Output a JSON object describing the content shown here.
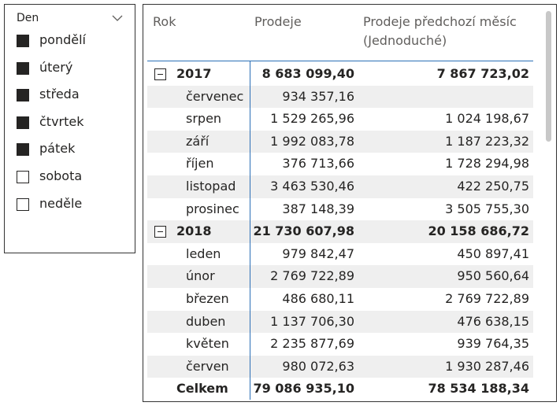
{
  "slicer": {
    "title": "Den",
    "items": [
      {
        "label": "pondělí",
        "checked": true
      },
      {
        "label": "úterý",
        "checked": true
      },
      {
        "label": "středa",
        "checked": true
      },
      {
        "label": "čtvrtek",
        "checked": true
      },
      {
        "label": "pátek",
        "checked": true
      },
      {
        "label": "sobota",
        "checked": false
      },
      {
        "label": "neděle",
        "checked": false
      }
    ]
  },
  "matrix": {
    "headers": {
      "rok": "Rok",
      "prodeje": "Prodeje",
      "predchozi_line1": "Prodeje předchozí měsíc",
      "predchozi_line2": "(Jednoduché)"
    },
    "rows": [
      {
        "label": "2017",
        "prodeje": "8 683 099,40",
        "predchozi": "7 867 723,02",
        "type": "year"
      },
      {
        "label": "červenec",
        "prodeje": "934 357,16",
        "predchozi": "",
        "type": "month"
      },
      {
        "label": "srpen",
        "prodeje": "1 529 265,96",
        "predchozi": "1 024 198,67",
        "type": "month"
      },
      {
        "label": "září",
        "prodeje": "1 992 083,78",
        "predchozi": "1 187 223,32",
        "type": "month"
      },
      {
        "label": "říjen",
        "prodeje": "376 713,66",
        "predchozi": "1 728 294,98",
        "type": "month"
      },
      {
        "label": "listopad",
        "prodeje": "3 463 530,46",
        "predchozi": "422 250,75",
        "type": "month"
      },
      {
        "label": "prosinec",
        "prodeje": "387 148,39",
        "predchozi": "3 505 755,30",
        "type": "month"
      },
      {
        "label": "2018",
        "prodeje": "21 730 607,98",
        "predchozi": "20 158 686,72",
        "type": "year"
      },
      {
        "label": "leden",
        "prodeje": "979 842,47",
        "predchozi": "450 897,41",
        "type": "month"
      },
      {
        "label": "únor",
        "prodeje": "2 769 722,89",
        "predchozi": "950 560,64",
        "type": "month"
      },
      {
        "label": "březen",
        "prodeje": "486 680,11",
        "predchozi": "2 769 722,89",
        "type": "month"
      },
      {
        "label": "duben",
        "prodeje": "1 137 706,30",
        "predchozi": "476 638,15",
        "type": "month"
      },
      {
        "label": "květen",
        "prodeje": "2 235 877,69",
        "predchozi": "939 764,35",
        "type": "month"
      },
      {
        "label": "červen",
        "prodeje": "980 072,63",
        "predchozi": "1 930 287,46",
        "type": "month"
      },
      {
        "label": "Celkem",
        "prodeje": "79 086 935,10",
        "predchozi": "78 534 188,34",
        "type": "total"
      }
    ]
  }
}
